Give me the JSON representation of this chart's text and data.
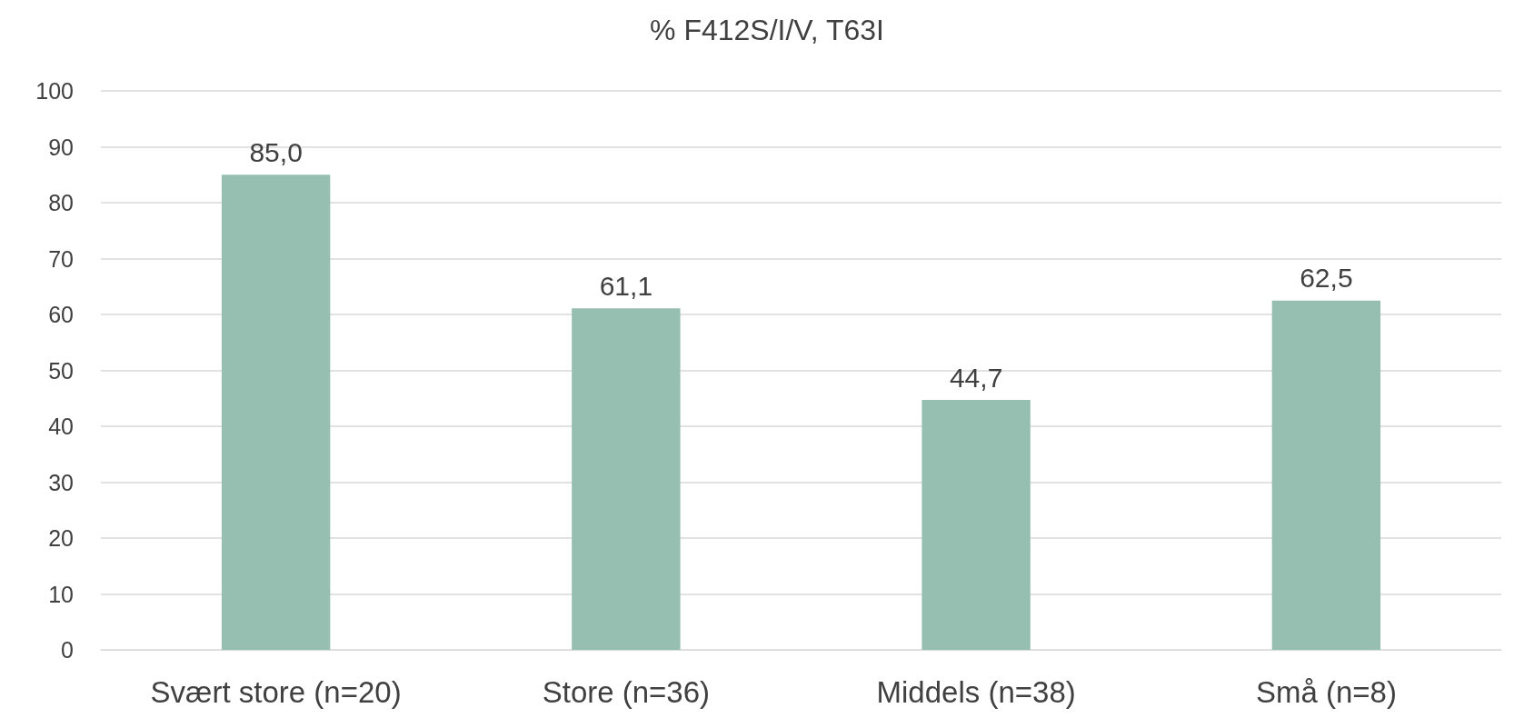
{
  "chart_data": {
    "type": "bar",
    "title": "% F412S/I/V, T63I",
    "categories": [
      "Svært store (n=20)",
      "Store (n=36)",
      "Middels (n=38)",
      "Små (n=8)"
    ],
    "values": [
      85.0,
      61.1,
      44.7,
      62.5
    ],
    "value_labels": [
      "85,0",
      "61,1",
      "44,7",
      "62,5"
    ],
    "color": "#96bfb2",
    "ylim": [
      0,
      100
    ],
    "yticks": [
      0,
      10,
      20,
      30,
      40,
      50,
      60,
      70,
      80,
      90,
      100
    ],
    "grid": "y"
  }
}
